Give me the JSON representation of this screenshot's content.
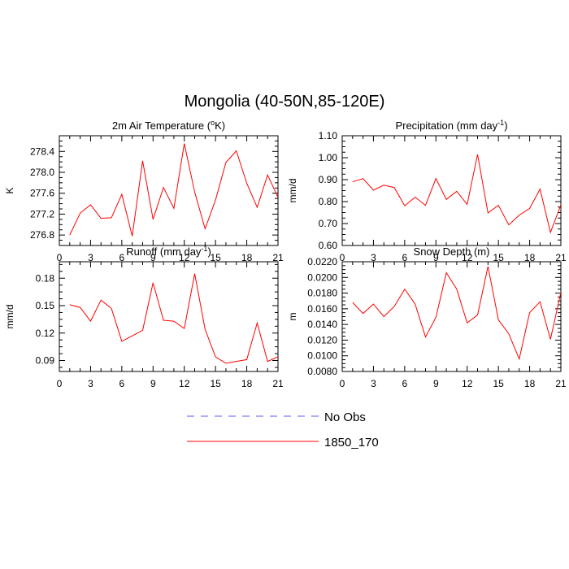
{
  "title": "Mongolia (40-50N,85-120E)",
  "colors": {
    "model": "#ff0000",
    "obs": "#5a5aff",
    "axis": "#000000"
  },
  "legend": {
    "obs": "No Obs",
    "model": "1850_170"
  },
  "chart_data": [
    {
      "id": "tas",
      "type": "line",
      "title_main": "2m Air Temperature (",
      "title_sup": "o",
      "title_tail": "K)",
      "ylabel": "K",
      "xlim": [
        0,
        21
      ],
      "ylim": [
        276.6,
        278.7
      ],
      "xticks": [
        0,
        3,
        6,
        9,
        12,
        15,
        18,
        21
      ],
      "yticks": [
        276.8,
        277.2,
        277.6,
        278.0,
        278.4
      ],
      "ytick_labels": [
        "276.8",
        "277.2",
        "277.6",
        "278.0",
        "278.4"
      ],
      "x": [
        1,
        2,
        3,
        4,
        5,
        6,
        7,
        8,
        9,
        10,
        11,
        12,
        13,
        14,
        15,
        16,
        17,
        18,
        19,
        20,
        21
      ],
      "series": [
        {
          "name": "1850_170",
          "values": [
            276.8,
            277.22,
            277.38,
            277.12,
            277.13,
            277.58,
            276.78,
            278.22,
            277.1,
            277.71,
            277.31,
            278.55,
            277.62,
            276.92,
            277.47,
            278.19,
            278.41,
            277.79,
            277.33,
            277.95,
            277.52
          ]
        }
      ]
    },
    {
      "id": "pr",
      "type": "line",
      "title_main": "Precipitation (mm day",
      "title_sup": "-1",
      "title_tail": ")",
      "ylabel": "mm/d",
      "xlim": [
        0,
        21
      ],
      "ylim": [
        0.6,
        1.1
      ],
      "xticks": [
        0,
        3,
        6,
        9,
        12,
        15,
        18,
        21
      ],
      "yticks": [
        0.6,
        0.7,
        0.8,
        0.9,
        1.0,
        1.1
      ],
      "ytick_labels": [
        "0.60",
        "0.70",
        "0.80",
        "0.90",
        "1.00",
        "1.10"
      ],
      "x": [
        1,
        2,
        3,
        4,
        5,
        6,
        7,
        8,
        9,
        10,
        11,
        12,
        13,
        14,
        15,
        16,
        17,
        18,
        19,
        20,
        21
      ],
      "series": [
        {
          "name": "1850_170",
          "values": [
            0.89,
            0.905,
            0.852,
            0.875,
            0.864,
            0.781,
            0.82,
            0.783,
            0.905,
            0.81,
            0.847,
            0.787,
            1.015,
            0.748,
            0.783,
            0.694,
            0.738,
            0.769,
            0.857,
            0.659,
            0.785
          ]
        }
      ]
    },
    {
      "id": "mrro",
      "type": "line",
      "title_main": "Runoff (mm day",
      "title_sup": "-1",
      "title_tail": ")",
      "ylabel": "mm/d",
      "xlim": [
        0,
        21
      ],
      "ylim": [
        0.078,
        0.198
      ],
      "xticks": [
        0,
        3,
        6,
        9,
        12,
        15,
        18,
        21
      ],
      "yticks": [
        0.09,
        0.12,
        0.15,
        0.18
      ],
      "ytick_labels": [
        "0.09",
        "0.12",
        "0.15",
        "0.18"
      ],
      "x": [
        1,
        2,
        3,
        4,
        5,
        6,
        7,
        8,
        9,
        10,
        11,
        12,
        13,
        14,
        15,
        16,
        17,
        18,
        19,
        20,
        21
      ],
      "series": [
        {
          "name": "1850_170",
          "values": [
            0.151,
            0.148,
            0.133,
            0.156,
            0.147,
            0.111,
            0.117,
            0.123,
            0.175,
            0.134,
            0.133,
            0.125,
            0.185,
            0.124,
            0.094,
            0.087,
            0.089,
            0.091,
            0.131,
            0.089,
            0.094
          ]
        }
      ]
    },
    {
      "id": "snd",
      "type": "line",
      "title_main": "Snow Depth (m)",
      "title_sup": "",
      "title_tail": "",
      "ylabel": "m",
      "xlim": [
        0,
        21
      ],
      "ylim": [
        0.008,
        0.022
      ],
      "xticks": [
        0,
        3,
        6,
        9,
        12,
        15,
        18,
        21
      ],
      "yticks": [
        0.008,
        0.01,
        0.012,
        0.014,
        0.016,
        0.018,
        0.02,
        0.022
      ],
      "ytick_labels": [
        "0.0080",
        "0.0100",
        "0.0120",
        "0.0140",
        "0.0160",
        "0.0180",
        "0.0200",
        "0.0220"
      ],
      "x": [
        1,
        2,
        3,
        4,
        5,
        6,
        7,
        8,
        9,
        10,
        11,
        12,
        13,
        14,
        15,
        16,
        17,
        18,
        19,
        20,
        21
      ],
      "series": [
        {
          "name": "1850_170",
          "values": [
            0.0168,
            0.0154,
            0.0166,
            0.015,
            0.0163,
            0.0185,
            0.0166,
            0.0124,
            0.0149,
            0.0206,
            0.0185,
            0.0142,
            0.0152,
            0.0214,
            0.0146,
            0.0128,
            0.0096,
            0.0155,
            0.0169,
            0.0121,
            0.0181
          ]
        }
      ]
    }
  ]
}
